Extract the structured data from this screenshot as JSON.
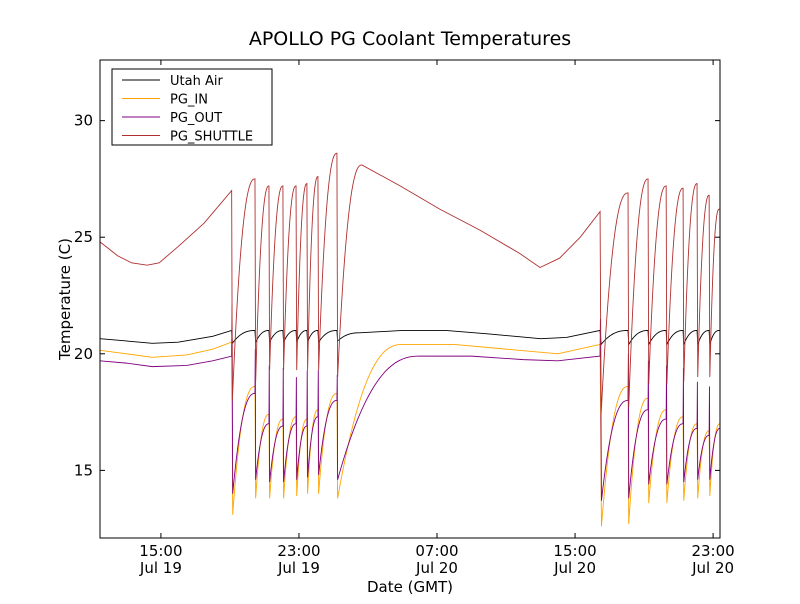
{
  "chart_data": {
    "type": "line",
    "title": "APOLLO PG Coolant Temperatures",
    "xlabel": "Date (GMT)",
    "ylabel": "Temperature (C)",
    "x_units": "hours since Jul 19 00:00 GMT",
    "xlim": [
      11.47,
      47.4
    ],
    "ylim": [
      12.1,
      32.6
    ],
    "grid": false,
    "legend_position": "top-left",
    "yticks": [
      15,
      20,
      25,
      30
    ],
    "xticks": [
      {
        "value": 15,
        "time": "15:00",
        "date": "Jul 19"
      },
      {
        "value": 23,
        "time": "23:00",
        "date": "Jul 19"
      },
      {
        "value": 31,
        "time": "07:00",
        "date": "Jul 20"
      },
      {
        "value": 39,
        "time": "15:00",
        "date": "Jul 20"
      },
      {
        "value": 47,
        "time": "23:00",
        "date": "Jul 20"
      }
    ],
    "series": [
      {
        "name": "Utah Air",
        "color": "#000000",
        "points": [
          [
            11.47,
            20.65
          ],
          [
            13,
            20.55
          ],
          [
            14.5,
            20.45
          ],
          [
            16,
            20.5
          ],
          [
            18,
            20.75
          ],
          [
            19.1,
            21.0
          ],
          [
            19.14,
            20.45
          ],
          [
            20.45,
            21.0
          ],
          [
            20.49,
            20.5
          ],
          [
            21.26,
            21.0
          ],
          [
            21.3,
            20.5
          ],
          [
            22.07,
            21.0
          ],
          [
            22.11,
            20.5
          ],
          [
            22.83,
            21.0
          ],
          [
            22.87,
            20.5
          ],
          [
            23.46,
            21.0
          ],
          [
            23.5,
            20.5
          ],
          [
            24.1,
            21.0
          ],
          [
            24.14,
            20.5
          ],
          [
            25.2,
            21.0
          ],
          [
            25.24,
            20.55
          ],
          [
            26.5,
            20.9
          ],
          [
            29,
            21.0
          ],
          [
            31.5,
            21.0
          ],
          [
            34,
            20.85
          ],
          [
            37,
            20.65
          ],
          [
            38.5,
            20.7
          ],
          [
            40.45,
            21.0
          ],
          [
            40.51,
            20.4
          ],
          [
            42.07,
            21.0
          ],
          [
            42.11,
            20.4
          ],
          [
            43.23,
            21.0
          ],
          [
            43.27,
            20.4
          ],
          [
            44.28,
            21.0
          ],
          [
            44.32,
            20.4
          ],
          [
            45.26,
            21.0
          ],
          [
            45.3,
            20.4
          ],
          [
            46.07,
            21.0
          ],
          [
            46.11,
            20.4
          ],
          [
            46.77,
            21.0
          ],
          [
            46.81,
            20.4
          ],
          [
            47.35,
            21.0
          ],
          [
            47.4,
            21.0
          ]
        ]
      },
      {
        "name": "PG_IN",
        "color": "#ffa500",
        "points": [
          [
            11.47,
            20.15
          ],
          [
            13,
            20.0
          ],
          [
            14.5,
            19.85
          ],
          [
            16.5,
            19.95
          ],
          [
            18,
            20.2
          ],
          [
            19.1,
            20.5
          ],
          [
            19.16,
            13.1
          ],
          [
            20.45,
            18.6
          ],
          [
            20.49,
            13.8
          ],
          [
            21.26,
            17.4
          ],
          [
            21.3,
            13.8
          ],
          [
            22.07,
            17.2
          ],
          [
            22.11,
            13.8
          ],
          [
            22.83,
            17.3
          ],
          [
            22.87,
            13.9
          ],
          [
            23.46,
            17.2
          ],
          [
            23.5,
            14.0
          ],
          [
            24.1,
            17.6
          ],
          [
            24.14,
            14.0
          ],
          [
            25.2,
            18.3
          ],
          [
            25.24,
            13.8
          ],
          [
            29,
            20.4
          ],
          [
            32,
            20.4
          ],
          [
            35,
            20.2
          ],
          [
            38,
            20.0
          ],
          [
            40.45,
            20.4
          ],
          [
            40.53,
            12.6
          ],
          [
            42.07,
            18.6
          ],
          [
            42.11,
            12.7
          ],
          [
            43.23,
            18.1
          ],
          [
            43.27,
            13.6
          ],
          [
            44.28,
            17.6
          ],
          [
            44.32,
            13.6
          ],
          [
            45.26,
            17.3
          ],
          [
            45.3,
            13.7
          ],
          [
            46.07,
            17.0
          ],
          [
            46.11,
            13.8
          ],
          [
            46.77,
            16.7
          ],
          [
            46.81,
            13.9
          ],
          [
            47.4,
            17.0
          ]
        ]
      },
      {
        "name": "PG_OUT",
        "color": "#800080",
        "points": [
          [
            11.47,
            19.7
          ],
          [
            13,
            19.6
          ],
          [
            14.5,
            19.45
          ],
          [
            16.5,
            19.5
          ],
          [
            18,
            19.7
          ],
          [
            19.1,
            19.9
          ],
          [
            19.12,
            22.1
          ],
          [
            19.16,
            14.0
          ],
          [
            20.45,
            18.3
          ],
          [
            20.47,
            20.2
          ],
          [
            20.49,
            14.6
          ],
          [
            21.26,
            17.0
          ],
          [
            21.28,
            19.5
          ],
          [
            21.3,
            14.5
          ],
          [
            22.07,
            16.9
          ],
          [
            22.09,
            19.4
          ],
          [
            22.11,
            14.5
          ],
          [
            22.83,
            17.0
          ],
          [
            22.85,
            19.0
          ],
          [
            22.87,
            14.6
          ],
          [
            23.46,
            16.9
          ],
          [
            23.48,
            19.3
          ],
          [
            23.5,
            14.7
          ],
          [
            24.1,
            17.3
          ],
          [
            24.12,
            19.3
          ],
          [
            24.14,
            14.8
          ],
          [
            25.2,
            18.0
          ],
          [
            25.22,
            19.1
          ],
          [
            25.24,
            14.6
          ],
          [
            30,
            19.9
          ],
          [
            33,
            19.9
          ],
          [
            36,
            19.75
          ],
          [
            38,
            19.7
          ],
          [
            40.45,
            19.9
          ],
          [
            40.47,
            21.5
          ],
          [
            40.53,
            13.7
          ],
          [
            42.07,
            18.0
          ],
          [
            42.09,
            20.0
          ],
          [
            42.11,
            13.8
          ],
          [
            43.23,
            17.6
          ],
          [
            43.25,
            19.7
          ],
          [
            43.27,
            14.4
          ],
          [
            44.28,
            17.2
          ],
          [
            44.3,
            19.5
          ],
          [
            44.32,
            14.4
          ],
          [
            45.26,
            17.0
          ],
          [
            45.28,
            19.4
          ],
          [
            45.3,
            14.5
          ],
          [
            46.07,
            16.8
          ],
          [
            46.09,
            18.8
          ],
          [
            46.11,
            14.6
          ],
          [
            46.77,
            16.5
          ],
          [
            46.79,
            18.6
          ],
          [
            46.81,
            14.6
          ],
          [
            47.4,
            16.8
          ]
        ]
      },
      {
        "name": "PG_SHUTTLE",
        "color": "#b03030",
        "points": [
          [
            11.47,
            24.8
          ],
          [
            12.5,
            24.2
          ],
          [
            13.3,
            23.9
          ],
          [
            14.2,
            23.8
          ],
          [
            14.9,
            23.9
          ],
          [
            16.0,
            24.6
          ],
          [
            17.5,
            25.6
          ],
          [
            19.1,
            27.0
          ],
          [
            19.14,
            18.0
          ],
          [
            20.45,
            27.5
          ],
          [
            20.49,
            18.8
          ],
          [
            21.26,
            27.2
          ],
          [
            21.3,
            19.3
          ],
          [
            22.07,
            27.2
          ],
          [
            22.11,
            19.3
          ],
          [
            22.83,
            27.2
          ],
          [
            22.87,
            19.3
          ],
          [
            23.46,
            27.3
          ],
          [
            23.5,
            19.3
          ],
          [
            24.1,
            27.6
          ],
          [
            24.14,
            19.3
          ],
          [
            25.2,
            28.6
          ],
          [
            25.24,
            19.0
          ],
          [
            26.65,
            28.1
          ],
          [
            28.86,
            27.2
          ],
          [
            31.17,
            26.2
          ],
          [
            33.5,
            25.3
          ],
          [
            35.8,
            24.3
          ],
          [
            36.97,
            23.7
          ],
          [
            38.1,
            24.1
          ],
          [
            39.3,
            25.0
          ],
          [
            40.45,
            26.1
          ],
          [
            40.51,
            17.4
          ],
          [
            42.07,
            26.9
          ],
          [
            42.11,
            17.7
          ],
          [
            43.23,
            27.5
          ],
          [
            43.27,
            18.7
          ],
          [
            44.28,
            27.2
          ],
          [
            44.32,
            18.7
          ],
          [
            45.26,
            27.1
          ],
          [
            45.3,
            18.8
          ],
          [
            46.07,
            27.3
          ],
          [
            46.11,
            19.0
          ],
          [
            46.77,
            26.8
          ],
          [
            46.81,
            19.0
          ],
          [
            47.35,
            26.2
          ],
          [
            47.4,
            26.2
          ]
        ]
      }
    ]
  }
}
